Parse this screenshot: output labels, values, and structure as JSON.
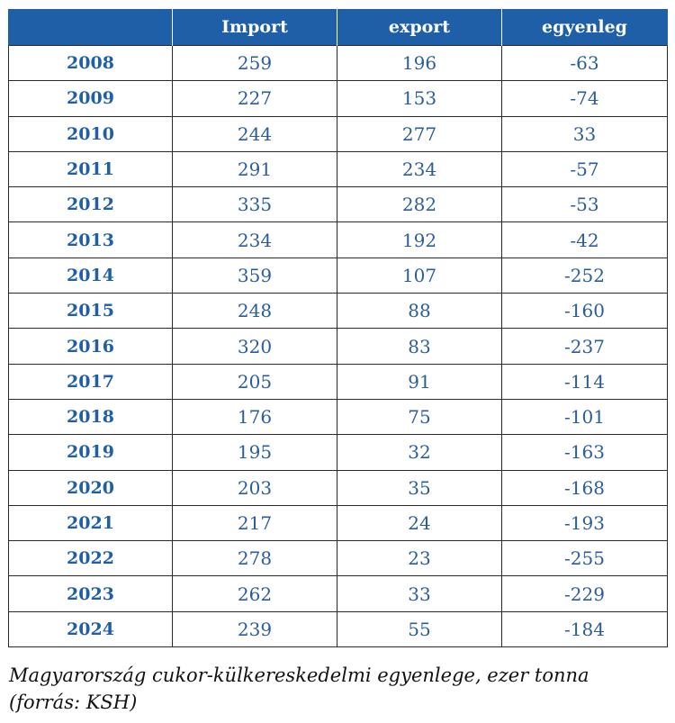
{
  "table": {
    "headers": [
      "",
      "Import",
      "export",
      "egyenleg"
    ],
    "rows": [
      {
        "year": "2008",
        "import": "259",
        "export": "196",
        "balance": "-63"
      },
      {
        "year": "2009",
        "import": "227",
        "export": "153",
        "balance": "-74"
      },
      {
        "year": "2010",
        "import": "244",
        "export": "277",
        "balance": "33"
      },
      {
        "year": "2011",
        "import": "291",
        "export": "234",
        "balance": "-57"
      },
      {
        "year": "2012",
        "import": "335",
        "export": "282",
        "balance": "-53"
      },
      {
        "year": "2013",
        "import": "234",
        "export": "192",
        "balance": "-42"
      },
      {
        "year": "2014",
        "import": "359",
        "export": "107",
        "balance": "-252"
      },
      {
        "year": "2015",
        "import": "248",
        "export": "88",
        "balance": "-160"
      },
      {
        "year": "2016",
        "import": "320",
        "export": "83",
        "balance": "-237"
      },
      {
        "year": "2017",
        "import": "205",
        "export": "91",
        "balance": "-114"
      },
      {
        "year": "2018",
        "import": "176",
        "export": "75",
        "balance": "-101"
      },
      {
        "year": "2019",
        "import": "195",
        "export": "32",
        "balance": "-163"
      },
      {
        "year": "2020",
        "import": "203",
        "export": "35",
        "balance": "-168"
      },
      {
        "year": "2021",
        "import": "217",
        "export": "24",
        "balance": "-193"
      },
      {
        "year": "2022",
        "import": "278",
        "export": "23",
        "balance": "-255"
      },
      {
        "year": "2023",
        "import": "262",
        "export": "33",
        "balance": "-229"
      },
      {
        "year": "2024",
        "import": "239",
        "export": "55",
        "balance": "-184"
      }
    ]
  },
  "caption": {
    "line1": "Magyarország cukor-külkereskedelmi egyenlege, ezer tonna",
    "line2": "(forrás: KSH)"
  },
  "colors": {
    "header_bg": "#1f5fa8",
    "header_text": "#ffffff",
    "cell_text": "#2a5d9a",
    "year_text": "#1f5fa8",
    "border": "#2b2b2b"
  }
}
